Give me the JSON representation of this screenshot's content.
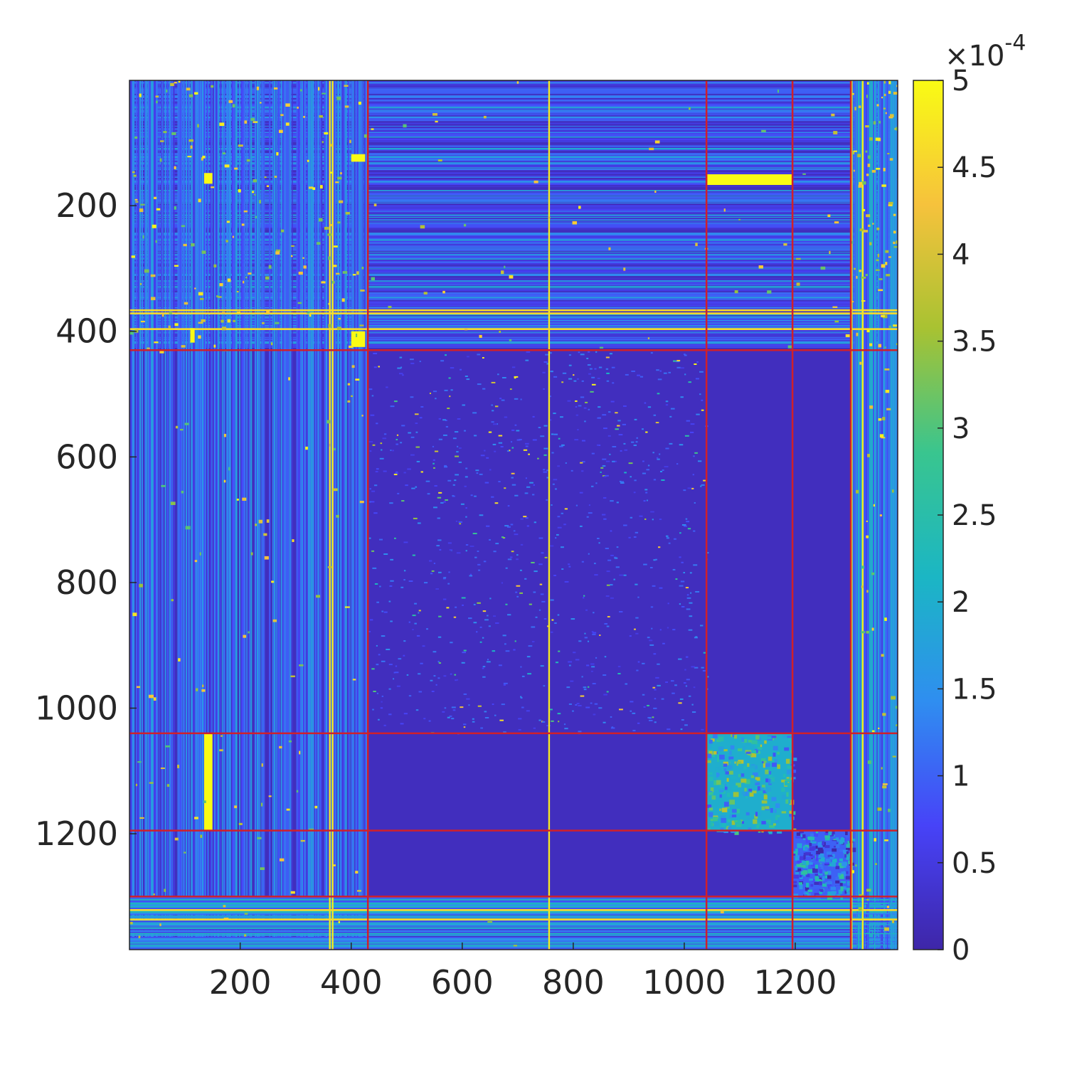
{
  "chart_data": {
    "type": "heatmap",
    "title": "",
    "xlabel": "",
    "ylabel": "",
    "matrix_size": 1384,
    "x_range": [
      1,
      1384
    ],
    "y_range": [
      1,
      1384
    ],
    "y_direction": "top-down",
    "x_ticks": [
      200,
      400,
      600,
      800,
      1000,
      1200
    ],
    "x_tick_labels": [
      "200",
      "400",
      "600",
      "800",
      "1000",
      "1200"
    ],
    "y_ticks": [
      200,
      400,
      600,
      800,
      1000,
      1200
    ],
    "y_tick_labels": [
      "200",
      "400",
      "600",
      "800",
      "1000",
      "1200"
    ],
    "colorbar": {
      "colormap": "parula",
      "placement": "right",
      "range": [
        0,
        5
      ],
      "ticks": [
        0,
        0.5,
        1,
        1.5,
        2,
        2.5,
        3,
        3.5,
        4,
        4.5,
        5
      ],
      "tick_labels": [
        "0",
        "0.5",
        "1",
        "1.5",
        "2",
        "2.5",
        "3",
        "3.5",
        "4",
        "4.5",
        "5"
      ],
      "multiplier_base": "×10",
      "multiplier_exponent": "-4",
      "colors": [
        "#3e26a8",
        "#4743f8",
        "#2f8ef0",
        "#1bb6c4",
        "#39c58f",
        "#a8c232",
        "#f6c23c",
        "#f9fb14"
      ]
    },
    "block_boundaries": [
      430,
      1040,
      1195,
      1300
    ],
    "boundary_color": "#d0202a",
    "background_value": 0.2,
    "bright_rectangles": [
      {
        "rows": [
          150,
          167
        ],
        "cols": [
          1040,
          1195
        ]
      },
      {
        "rows": [
          1040,
          1195
        ],
        "cols": [
          135,
          150
        ]
      },
      {
        "rows": [
          148,
          165
        ],
        "cols": [
          135,
          150
        ]
      },
      {
        "rows": [
          400,
          425
        ],
        "cols": [
          400,
          425
        ]
      },
      {
        "rows": [
          118,
          130
        ],
        "cols": [
          400,
          425
        ]
      },
      {
        "rows": [
          395,
          418
        ],
        "cols": [
          110,
          118
        ]
      }
    ],
    "textured_blocks": [
      {
        "rows": [
          1040,
          1195
        ],
        "cols": [
          1040,
          1195
        ],
        "level": 2.0
      },
      {
        "rows": [
          1195,
          1300
        ],
        "cols": [
          1195,
          1300
        ],
        "level": 1.0
      }
    ],
    "bright_columns": [
      360,
      365,
      755,
      1300,
      1320
    ],
    "bright_rows": [
      365,
      370,
      395,
      1320,
      1335
    ]
  }
}
